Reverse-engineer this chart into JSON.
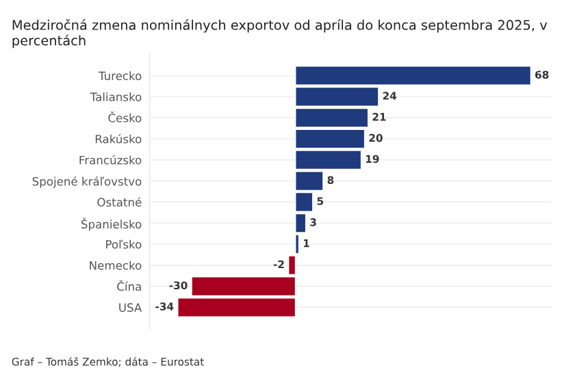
{
  "chart_data": {
    "type": "bar",
    "orientation": "horizontal",
    "title": "Medziročná zmena nominálnych exportov od apríla do konca septembra 2025, v percentách",
    "categories": [
      "Turecko",
      "Taliansko",
      "Česko",
      "Rakúsko",
      "Francúzsko",
      "Spojené kráľovstvo",
      "Ostatné",
      "Španielsko",
      "Poľsko",
      "Nemecko",
      "Čína",
      "USA"
    ],
    "values": [
      68,
      24,
      21,
      20,
      19,
      8,
      5,
      3,
      1,
      -2,
      -30,
      -34
    ],
    "colors": [
      "#1f3a7d",
      "#1f3a7d",
      "#1f3a7d",
      "#1f3a7d",
      "#1f3a7d",
      "#1f3a7d",
      "#1f3a7d",
      "#1f3a7d",
      "#1f3a7d",
      "#a8001f",
      "#a8001f",
      "#a8001f"
    ],
    "data_labels": true,
    "grid": "y",
    "legend": false,
    "annotations": [
      "Graf – Tomáš Zemko; dáta – Eurostat"
    ]
  }
}
